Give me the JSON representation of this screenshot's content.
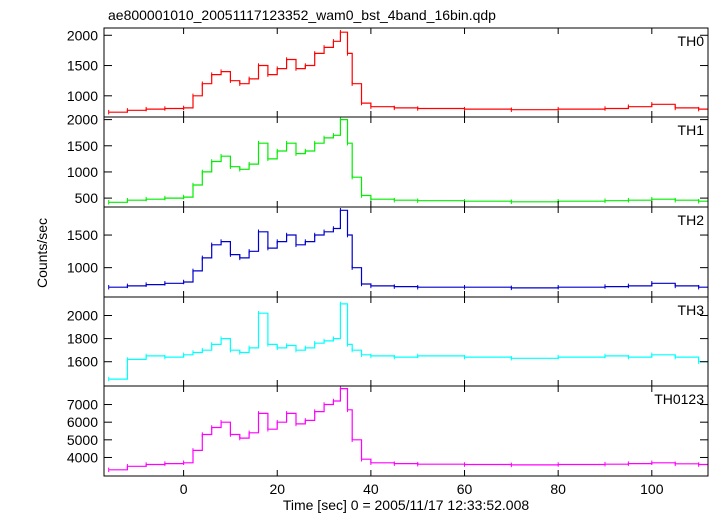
{
  "title": "ae800001010_20051117123352_wam0_bst_4band_16bin.qdp",
  "chart_data": {
    "type": "line",
    "title": "ae800001010_20051117123352_wam0_bst_4band_16bin.qdp",
    "xlabel": "Time [sec] 0 = 2005/11/17 12:33:52.008",
    "ylabel": "Counts/sec",
    "xlim": [
      -17,
      112
    ],
    "x_ticks": [
      0,
      20,
      40,
      60,
      80,
      100
    ],
    "x_tick_labels": [
      "0",
      "20",
      "40",
      "60",
      "80",
      "100"
    ],
    "grid": false,
    "panels": [
      {
        "name": "TH0",
        "color": "#ff0000",
        "ylim": [
          650,
          2120
        ],
        "y_ticks": [
          1000,
          1500,
          2000
        ],
        "y_tick_labels": [
          "1000",
          "1500",
          "2000"
        ],
        "series": [
          {
            "name": "TH0",
            "x": [
              -16,
              -12,
              -8,
              -4,
              0,
              2,
              4,
              6,
              8,
              10,
              12,
              14,
              16,
              18,
              20,
              22,
              24,
              26,
              28,
              30,
              32,
              33.5,
              35,
              36,
              38,
              40,
              45,
              50,
              60,
              70,
              80,
              90,
              95,
              100,
              105,
              110
            ],
            "y": [
              730,
              760,
              780,
              790,
              800,
              1000,
              1200,
              1350,
              1400,
              1250,
              1200,
              1280,
              1500,
              1350,
              1450,
              1600,
              1450,
              1500,
              1700,
              1800,
              1900,
              2050,
              1700,
              1200,
              880,
              820,
              800,
              790,
              780,
              770,
              780,
              790,
              820,
              860,
              800,
              780
            ]
          }
        ]
      },
      {
        "name": "TH1",
        "color": "#00ee00",
        "ylim": [
          330,
          2050
        ],
        "y_ticks": [
          500,
          1000,
          1500,
          2000
        ],
        "y_tick_labels": [
          "500",
          "1000",
          "1500",
          "2000"
        ],
        "series": [
          {
            "name": "TH1",
            "x": [
              -16,
              -12,
              -8,
              -4,
              0,
              2,
              4,
              6,
              8,
              10,
              12,
              14,
              16,
              18,
              20,
              22,
              24,
              26,
              28,
              30,
              32,
              33.5,
              35,
              36,
              38,
              40,
              45,
              50,
              60,
              70,
              80,
              90,
              95,
              100,
              105,
              110
            ],
            "y": [
              420,
              460,
              480,
              500,
              520,
              750,
              1000,
              1200,
              1300,
              1100,
              1050,
              1150,
              1550,
              1250,
              1400,
              1550,
              1350,
              1400,
              1550,
              1650,
              1700,
              2000,
              1550,
              900,
              550,
              480,
              460,
              450,
              440,
              430,
              440,
              450,
              460,
              480,
              460,
              440
            ]
          }
        ]
      },
      {
        "name": "TH2",
        "color": "#0000cc",
        "ylim": [
          550,
          1930
        ],
        "y_ticks": [
          1000,
          1500
        ],
        "y_tick_labels": [
          "1000",
          "1500"
        ],
        "series": [
          {
            "name": "TH2",
            "x": [
              -16,
              -12,
              -8,
              -4,
              0,
              2,
              4,
              6,
              8,
              10,
              12,
              14,
              16,
              18,
              20,
              22,
              24,
              26,
              28,
              30,
              32,
              33.5,
              35,
              36,
              38,
              40,
              45,
              50,
              60,
              70,
              80,
              90,
              95,
              100,
              105,
              110
            ],
            "y": [
              700,
              720,
              740,
              760,
              780,
              950,
              1150,
              1350,
              1400,
              1200,
              1150,
              1250,
              1550,
              1300,
              1400,
              1500,
              1350,
              1400,
              1500,
              1550,
              1600,
              1880,
              1500,
              1000,
              750,
              720,
              710,
              700,
              700,
              690,
              700,
              710,
              720,
              760,
              720,
              700
            ]
          }
        ]
      },
      {
        "name": "TH3",
        "color": "#00ffff",
        "ylim": [
          1390,
          2160
        ],
        "y_ticks": [
          1600,
          1800,
          2000
        ],
        "y_tick_labels": [
          "1600",
          "1800",
          "2000"
        ],
        "series": [
          {
            "name": "TH3",
            "x": [
              -16,
              -12,
              -8,
              -4,
              0,
              2,
              4,
              6,
              8,
              10,
              12,
              14,
              16,
              18,
              20,
              22,
              24,
              26,
              28,
              30,
              32,
              33.5,
              35,
              36,
              38,
              40,
              45,
              50,
              60,
              70,
              80,
              90,
              95,
              100,
              105,
              110
            ],
            "y": [
              1450,
              1620,
              1650,
              1640,
              1660,
              1680,
              1700,
              1750,
              1800,
              1700,
              1680,
              1720,
              2020,
              1750,
              1720,
              1740,
              1700,
              1720,
              1760,
              1780,
              1800,
              2100,
              1750,
              1700,
              1660,
              1650,
              1640,
              1650,
              1640,
              1630,
              1640,
              1650,
              1640,
              1660,
              1640,
              1600
            ]
          }
        ]
      },
      {
        "name": "TH0123",
        "color": "#ff00ff",
        "ylim": [
          2950,
          8050
        ],
        "y_ticks": [
          4000,
          5000,
          6000,
          7000
        ],
        "y_tick_labels": [
          "4000",
          "5000",
          "6000",
          "7000"
        ],
        "series": [
          {
            "name": "TH0123",
            "x": [
              -16,
              -12,
              -8,
              -4,
              0,
              2,
              4,
              6,
              8,
              10,
              12,
              14,
              16,
              18,
              20,
              22,
              24,
              26,
              28,
              30,
              32,
              33.5,
              35,
              36,
              38,
              40,
              45,
              50,
              60,
              70,
              80,
              90,
              95,
              100,
              105,
              110
            ],
            "y": [
              3300,
              3500,
              3600,
              3650,
              3700,
              4400,
              5300,
              5700,
              6000,
              5300,
              5100,
              5400,
              6500,
              5600,
              6000,
              6500,
              5900,
              6100,
              6600,
              7000,
              7200,
              7900,
              6700,
              5000,
              3900,
              3700,
              3650,
              3620,
              3600,
              3580,
              3600,
              3620,
              3650,
              3700,
              3640,
              3600
            ]
          }
        ]
      }
    ]
  }
}
